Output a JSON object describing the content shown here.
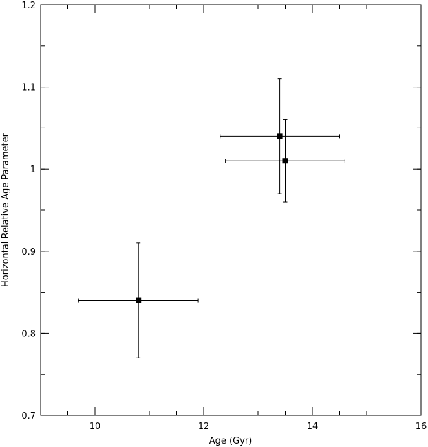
{
  "chart_data": {
    "type": "scatter",
    "title": "",
    "xlabel": "Age (Gyr)",
    "ylabel": "Horizontal Relative Age Parameter",
    "xlim": [
      9,
      16
    ],
    "ylim": [
      0.7,
      1.2
    ],
    "x_ticks": [
      10,
      12,
      14,
      16
    ],
    "x_tick_labels": [
      "10",
      "12",
      "14",
      "16"
    ],
    "y_ticks": [
      0.7,
      0.8,
      0.9,
      1.0,
      1.1,
      1.2
    ],
    "y_tick_labels": [
      "0.7",
      "0.8",
      "0.9",
      "1",
      "1.1",
      "1.2"
    ],
    "x_minor_step": 0.5,
    "y_minor_step": 0.05,
    "grid": false,
    "marker": "square",
    "color": "#000000",
    "points": [
      {
        "x": 10.8,
        "y": 0.84,
        "xerr": 1.1,
        "yerr": 0.07
      },
      {
        "x": 13.4,
        "y": 1.04,
        "xerr": 1.1,
        "yerr": 0.07
      },
      {
        "x": 13.5,
        "y": 1.01,
        "xerr": 1.1,
        "yerr": 0.05
      }
    ]
  }
}
